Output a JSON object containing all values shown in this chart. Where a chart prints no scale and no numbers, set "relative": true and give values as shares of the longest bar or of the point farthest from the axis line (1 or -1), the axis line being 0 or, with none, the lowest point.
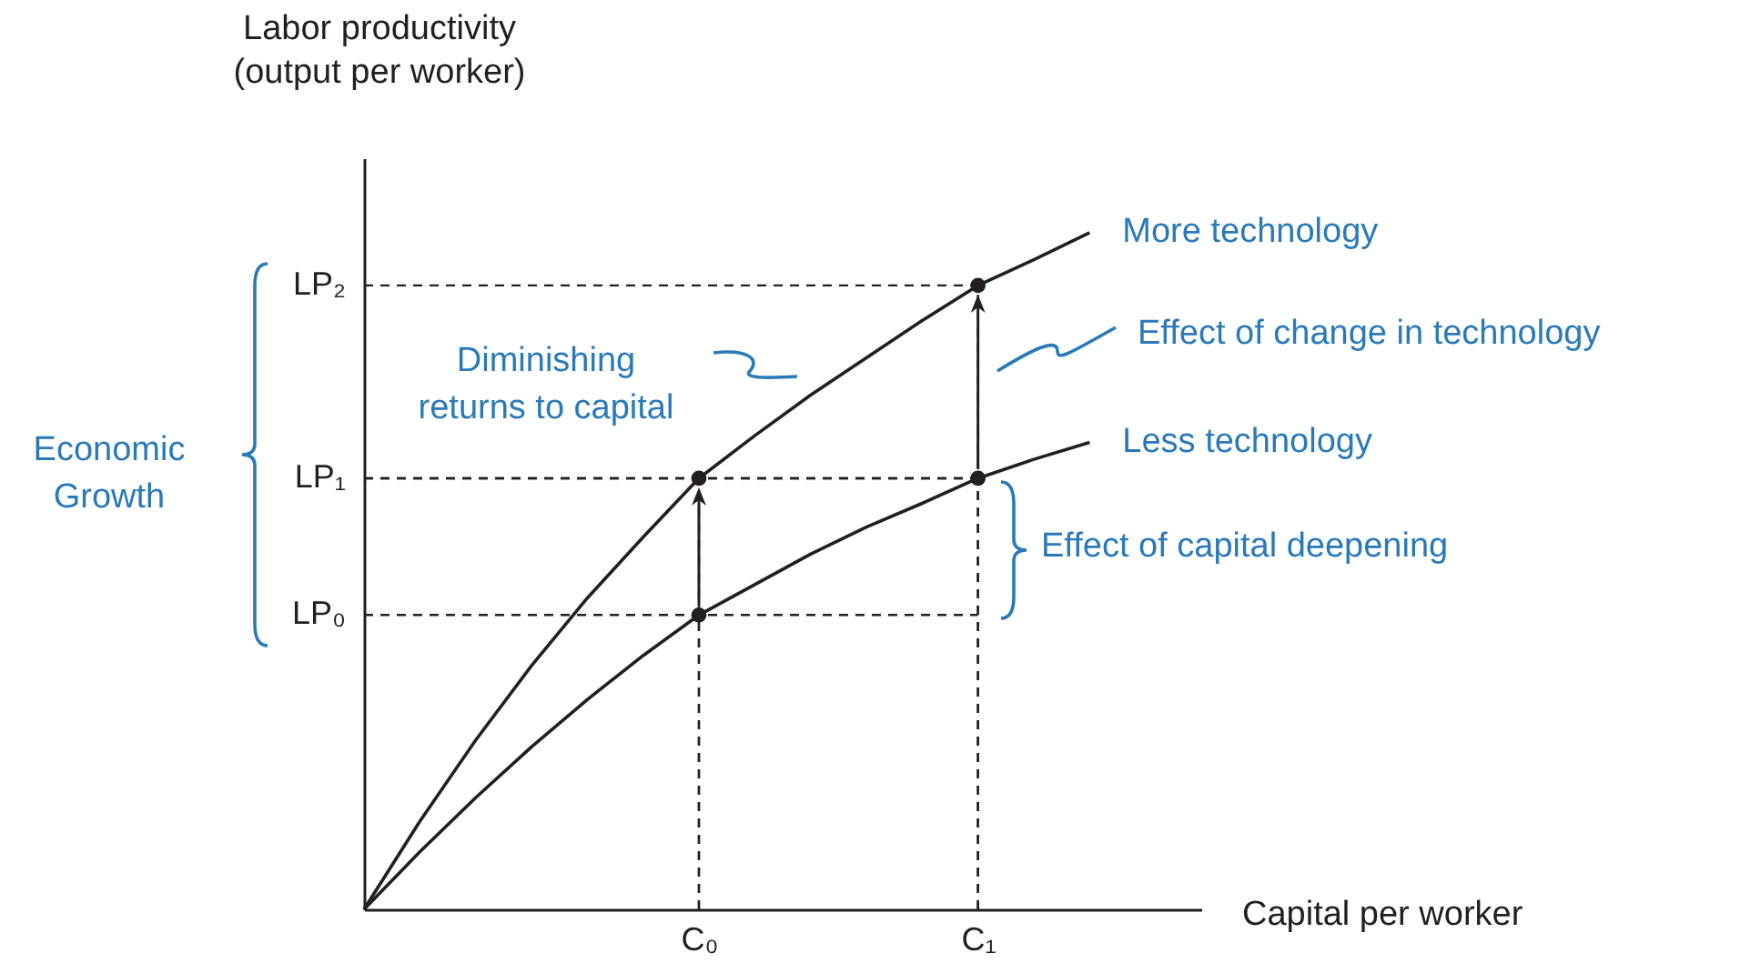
{
  "chart_data": {
    "type": "line",
    "ylabel": "Labor productivity\n(output per worker)",
    "xlabel": "Capital per worker",
    "relative": true,
    "grid": "x",
    "line_style": "solid",
    "categories": [
      null,
      null,
      null,
      null,
      null,
      null,
      "C₀",
      null,
      null,
      null,
      null,
      "C₁",
      null,
      null,
      null,
      null
    ],
    "series": [
      {
        "name": "More technology",
        "color": "#231f20",
        "values": [
          0,
          0.13,
          0.25,
          0.36,
          0.46,
          0.55,
          0.637,
          0.7,
          0.76,
          0.815,
          0.87,
          0.922,
          0.96,
          1,
          null,
          null
        ]
      },
      {
        "name": "Less technology",
        "color": "#231f20",
        "values": [
          0,
          0.085,
          0.165,
          0.24,
          0.31,
          0.375,
          0.435,
          0.48,
          0.525,
          0.565,
          0.6,
          0.637,
          0.665,
          0.69,
          null,
          null
        ]
      },
      {
        "type": "scatter",
        "color": "#231f20",
        "marker": "circle",
        "values": [
          null,
          null,
          null,
          null,
          null,
          null,
          0.637,
          null,
          null,
          null,
          null,
          0.922,
          null,
          null,
          null,
          null
        ]
      },
      {
        "type": "scatter",
        "color": "#231f20",
        "marker": "circle",
        "values": [
          null,
          null,
          null,
          null,
          null,
          null,
          0.435,
          null,
          null,
          null,
          null,
          0.637,
          null,
          null,
          null,
          null
        ]
      }
    ],
    "annotations": [
      "Economic\nGrowth",
      "Diminishing\nreturns to capital",
      "Effect of change in technology",
      "Effect of capital deepening",
      "LP₀",
      "LP₁",
      "LP₂"
    ]
  }
}
